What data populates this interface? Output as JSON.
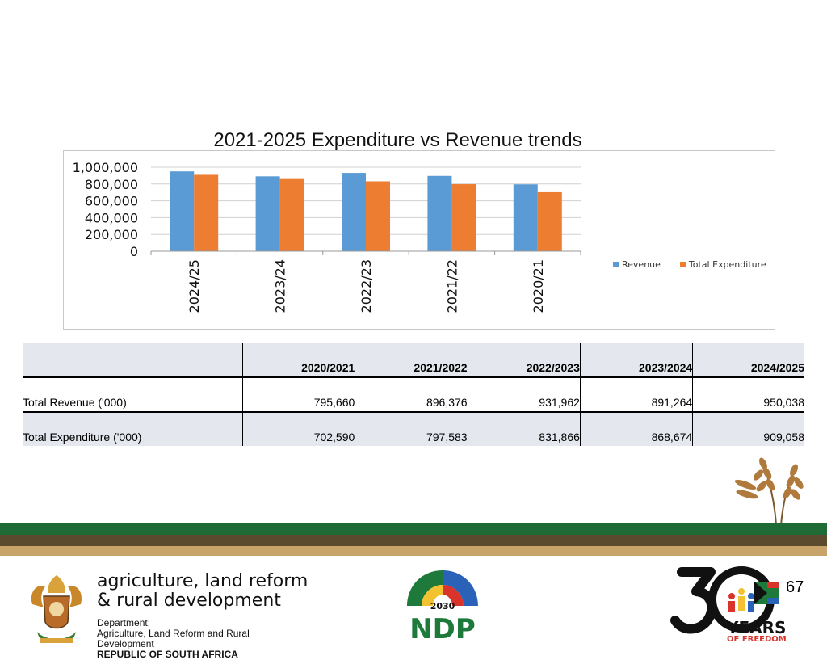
{
  "chart_data": {
    "type": "bar",
    "title": "2021-2025 Expenditure vs Revenue trends",
    "categories": [
      "2024/25",
      "2023/24",
      "2022/23",
      "2021/22",
      "2020/21"
    ],
    "series": [
      {
        "name": "Revenue",
        "color": "#5b9bd5",
        "values": [
          950038,
          891264,
          931962,
          896376,
          795660
        ]
      },
      {
        "name": "Total Expenditure",
        "color": "#ed7d31",
        "values": [
          909058,
          868674,
          831866,
          797583,
          702590
        ]
      }
    ],
    "ylim": [
      0,
      1000000
    ],
    "yticks": [
      "0",
      "200,000",
      "400,000",
      "600,000",
      "800,000",
      "1,000,000"
    ],
    "xlabel": "",
    "ylabel": "",
    "grid": true,
    "legend_position": "right"
  },
  "table": {
    "headers": [
      "",
      "2020/2021",
      "2021/2022",
      "2022/2023",
      "2023/2024",
      "2024/2025"
    ],
    "rows": [
      {
        "label": "Total Revenue ('000)",
        "values": [
          "795,660",
          "896,376",
          "931,962",
          "891,264",
          "950,038"
        ]
      },
      {
        "label": "Total Expenditure ('000)",
        "values": [
          "702,590",
          "797,583",
          "831,866",
          "868,674",
          "909,058"
        ]
      }
    ]
  },
  "footer": {
    "dept_line1": "agriculture, land reform",
    "dept_line2": "& rural development",
    "dept_label": "Department:",
    "dept_full": "Agriculture, Land Reform and Rural Development",
    "republic": "REPUBLIC OF SOUTH AFRICA",
    "ndp_year": "2030",
    "ndp_text": "NDP",
    "years_text": "YEARS",
    "freedom_text": "OF FREEDOM",
    "page_number": "67"
  },
  "colors": {
    "band_green": "#1e6b35",
    "band_brown": "#5b4a2e",
    "band_tan": "#c9a46a"
  }
}
